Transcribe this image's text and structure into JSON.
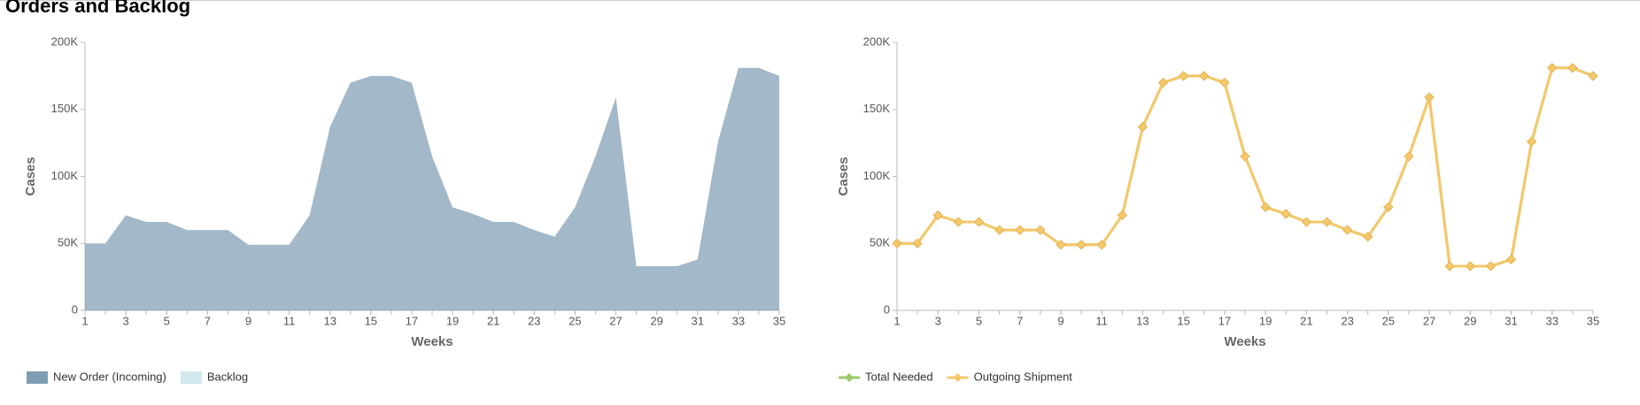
{
  "title": "Orders and Backlog",
  "chart_data": [
    {
      "type": "area",
      "y_label": "Cases",
      "x_label": "Weeks",
      "x": [
        1,
        2,
        3,
        4,
        5,
        6,
        7,
        8,
        9,
        10,
        11,
        12,
        13,
        14,
        15,
        16,
        17,
        18,
        19,
        20,
        21,
        22,
        23,
        24,
        25,
        26,
        27,
        28,
        29,
        30,
        31,
        32,
        33,
        34,
        35
      ],
      "series": [
        {
          "name": "New Order (Incoming)",
          "color": "#7f9db3",
          "values": [
            50000,
            50000,
            71000,
            66000,
            66000,
            60000,
            60000,
            60000,
            49000,
            49000,
            49000,
            71000,
            137000,
            170000,
            175000,
            175000,
            170000,
            115000,
            77000,
            72000,
            66000,
            66000,
            60000,
            55000,
            77000,
            115000,
            159000,
            33000,
            33000,
            33000,
            38000,
            126000,
            181000,
            181000,
            175000
          ]
        },
        {
          "name": "Backlog",
          "color": "#d3e8ee",
          "values": [
            0,
            0,
            0,
            0,
            0,
            0,
            0,
            0,
            0,
            0,
            0,
            0,
            0,
            0,
            0,
            0,
            0,
            0,
            0,
            0,
            0,
            0,
            0,
            0,
            0,
            0,
            0,
            0,
            0,
            0,
            0,
            0,
            0,
            0,
            0
          ]
        }
      ],
      "xlim": [
        1,
        35
      ],
      "xticks": [
        1,
        3,
        5,
        7,
        9,
        11,
        13,
        15,
        17,
        19,
        21,
        23,
        25,
        27,
        29,
        31,
        33,
        35
      ],
      "ylim": [
        0,
        200000
      ],
      "yticks": [
        0,
        {
          "value": 50000,
          "label": "50K"
        },
        {
          "value": 100000,
          "label": "100K"
        },
        {
          "value": 150000,
          "label": "150K"
        },
        {
          "value": 200000,
          "label": "200K"
        }
      ]
    },
    {
      "type": "line",
      "y_label": "Cases",
      "x_label": "Weeks",
      "x": [
        1,
        2,
        3,
        4,
        5,
        6,
        7,
        8,
        9,
        10,
        11,
        12,
        13,
        14,
        15,
        16,
        17,
        18,
        19,
        20,
        21,
        22,
        23,
        24,
        25,
        26,
        27,
        28,
        29,
        30,
        31,
        32,
        33,
        34,
        35
      ],
      "series": [
        {
          "name": "Total Needed",
          "color": "#9dc86a",
          "values": [
            50000,
            50000,
            71000,
            66000,
            66000,
            60000,
            60000,
            60000,
            49000,
            49000,
            49000,
            71000,
            137000,
            170000,
            175000,
            175000,
            170000,
            115000,
            77000,
            72000,
            66000,
            66000,
            60000,
            55000,
            77000,
            115000,
            159000,
            33000,
            33000,
            33000,
            38000,
            126000,
            181000,
            181000,
            175000
          ]
        },
        {
          "name": "Outgoing Shipment",
          "color": "#f5c86a",
          "values": [
            50000,
            50000,
            71000,
            66000,
            66000,
            60000,
            60000,
            60000,
            49000,
            49000,
            49000,
            71000,
            137000,
            170000,
            175000,
            175000,
            170000,
            115000,
            77000,
            72000,
            66000,
            66000,
            60000,
            55000,
            77000,
            115000,
            159000,
            33000,
            33000,
            33000,
            38000,
            126000,
            181000,
            181000,
            175000
          ]
        }
      ],
      "xlim": [
        1,
        35
      ],
      "xticks": [
        1,
        3,
        5,
        7,
        9,
        11,
        13,
        15,
        17,
        19,
        21,
        23,
        25,
        27,
        29,
        31,
        33,
        35
      ],
      "ylim": [
        0,
        200000
      ],
      "yticks": [
        0,
        {
          "value": 50000,
          "label": "50K"
        },
        {
          "value": 100000,
          "label": "100K"
        },
        {
          "value": 150000,
          "label": "150K"
        },
        {
          "value": 200000,
          "label": "200K"
        }
      ]
    }
  ]
}
